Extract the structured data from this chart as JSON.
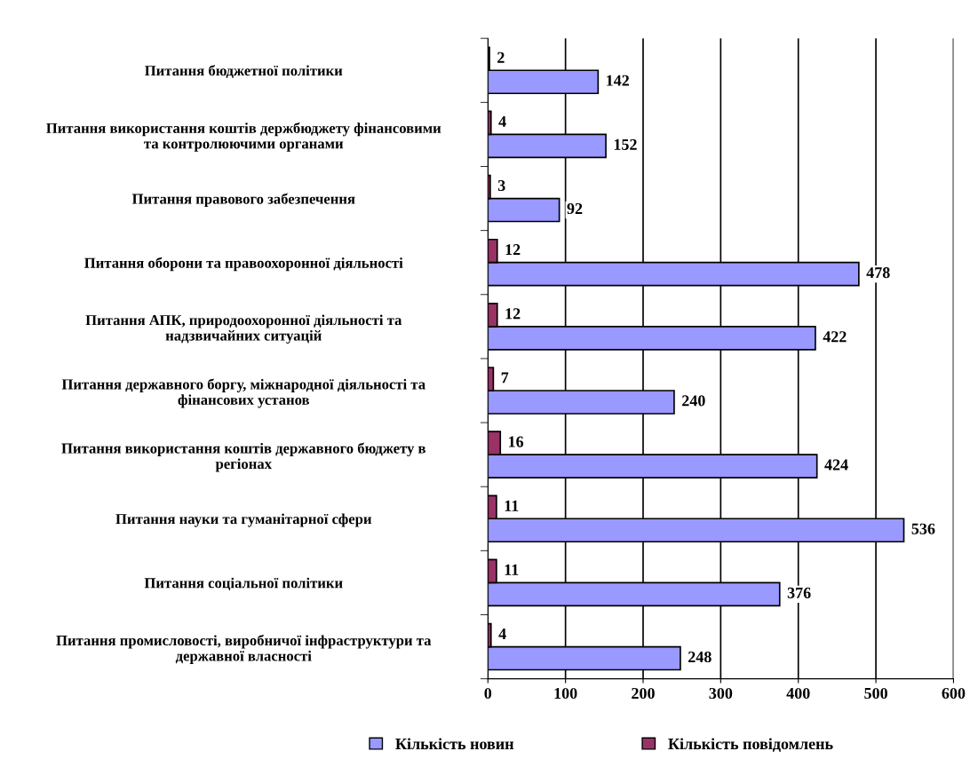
{
  "chart_data": {
    "type": "bar",
    "orientation": "horizontal",
    "categories": [
      "Питання бюджетної політики",
      "Питання використання коштів держбюджету фінансовими\nта контролюючими органами",
      "Питання правового забезпечення",
      "Питання оборони та правоохоронної діяльності",
      "Питання АПК, природоохоронної діяльності та\nнадзвичайних ситуацій",
      "Питання державного боргу, міжнародної діяльності та\nфінансових установ",
      "Питання використання коштів державного бюджету в\nрегіонах",
      "Питання науки та гуманітарної сфери",
      "Питання соціальної політики",
      "Питання промисловості, виробничої інфраструктури та\nдержавної власності"
    ],
    "series": [
      {
        "name": "Кількість новин",
        "color": "#9999ff",
        "values": [
          142,
          152,
          92,
          478,
          422,
          240,
          424,
          536,
          376,
          248
        ]
      },
      {
        "name": "Кількість повідомлень",
        "color": "#993366",
        "values": [
          2,
          4,
          3,
          12,
          12,
          7,
          16,
          11,
          11,
          4
        ]
      }
    ],
    "xlim": [
      0,
      600
    ],
    "xticks": [
      0,
      100,
      200,
      300,
      400,
      500,
      600
    ],
    "grid": "x",
    "legend": "bottom",
    "data_labels": true
  }
}
